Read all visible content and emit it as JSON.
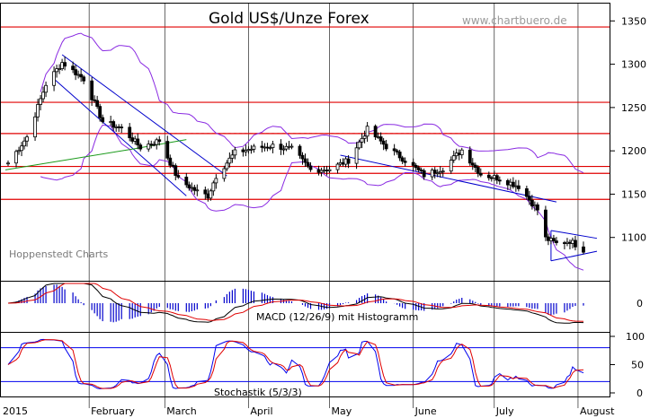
{
  "header": {
    "title": "Gold US$/Unze Forex",
    "watermark": "www.chartbuero.de",
    "credit": "Hoppenstedt Charts"
  },
  "colors": {
    "price": "#000000",
    "bollinger": "#8a2be2",
    "resistance": "#e00000",
    "trend": "#0000cc",
    "ma": "#1a9a1a",
    "macd_hist": "#0000cc",
    "macd_line": "#000000",
    "signal": "#e00000",
    "stoch_k": "#0000ee",
    "stoch_d": "#e00000"
  },
  "chart_data": [
    {
      "type": "candlestick",
      "title": "Gold US$/Unze Forex",
      "x_labels": [
        "2015",
        "February",
        "March",
        "April",
        "May",
        "June",
        "July",
        "August"
      ],
      "y_ticks": [
        1100,
        1150,
        1200,
        1250,
        1300,
        1350
      ],
      "ylim": [
        1050,
        1370
      ],
      "horizontal_levels": [
        1343,
        1256,
        1220,
        1182,
        1174,
        1144
      ],
      "approx_close_path": [
        {
          "date": "2015-01-02",
          "close": 1186
        },
        {
          "date": "2015-01-09",
          "close": 1216
        },
        {
          "date": "2015-01-16",
          "close": 1277
        },
        {
          "date": "2015-01-22",
          "close": 1302
        },
        {
          "date": "2015-01-30",
          "close": 1283
        },
        {
          "date": "2015-02-06",
          "close": 1234
        },
        {
          "date": "2015-02-13",
          "close": 1226
        },
        {
          "date": "2015-02-20",
          "close": 1204
        },
        {
          "date": "2015-02-27",
          "close": 1212
        },
        {
          "date": "2015-03-06",
          "close": 1167
        },
        {
          "date": "2015-03-13",
          "close": 1153
        },
        {
          "date": "2015-03-17",
          "close": 1148
        },
        {
          "date": "2015-03-20",
          "close": 1171
        },
        {
          "date": "2015-03-27",
          "close": 1198
        },
        {
          "date": "2015-04-03",
          "close": 1203
        },
        {
          "date": "2015-04-10",
          "close": 1206
        },
        {
          "date": "2015-04-17",
          "close": 1202
        },
        {
          "date": "2015-04-24",
          "close": 1178
        },
        {
          "date": "2015-05-01",
          "close": 1179
        },
        {
          "date": "2015-05-08",
          "close": 1189
        },
        {
          "date": "2015-05-15",
          "close": 1225
        },
        {
          "date": "2015-05-22",
          "close": 1205
        },
        {
          "date": "2015-05-29",
          "close": 1189
        },
        {
          "date": "2015-06-05",
          "close": 1172
        },
        {
          "date": "2015-06-12",
          "close": 1180
        },
        {
          "date": "2015-06-19",
          "close": 1201
        },
        {
          "date": "2015-06-26",
          "close": 1173
        },
        {
          "date": "2015-07-03",
          "close": 1168
        },
        {
          "date": "2015-07-10",
          "close": 1159
        },
        {
          "date": "2015-07-17",
          "close": 1132
        },
        {
          "date": "2015-07-20",
          "close": 1099
        },
        {
          "date": "2015-07-24",
          "close": 1093
        },
        {
          "date": "2015-07-29",
          "close": 1096
        },
        {
          "date": "2015-08-03",
          "close": 1086
        }
      ]
    },
    {
      "type": "line",
      "title": "MACD (12/26/9) mit Histogramm",
      "y_ticks": [
        0
      ]
    },
    {
      "type": "line",
      "title": "Stochastik (5/3/3)",
      "y_ticks": [
        0,
        50,
        100
      ],
      "ylim": [
        0,
        100
      ],
      "reference_levels": [
        80,
        20
      ]
    }
  ]
}
